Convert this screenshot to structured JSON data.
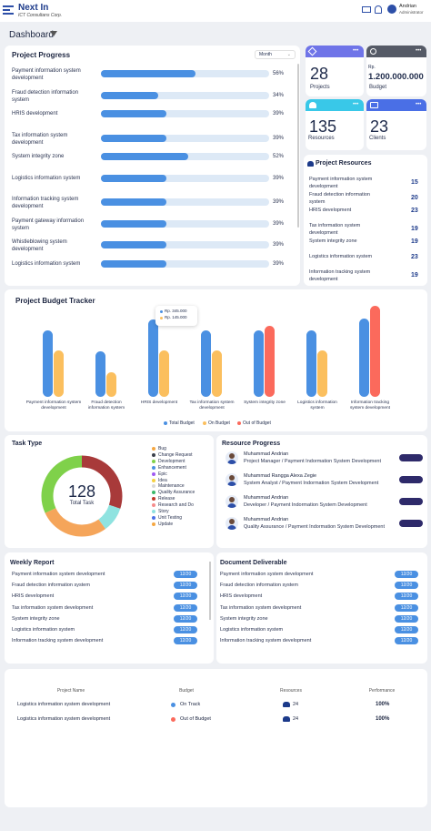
{
  "header": {
    "app_name": "Next In",
    "company": "ICT Consultans Corp.",
    "user_name": "Andrian",
    "user_role": "Administrator"
  },
  "dashboard": {
    "title": "Dashboard"
  },
  "project_progress": {
    "title": "Project Progress",
    "period": "Month",
    "items": [
      {
        "name_l1": "Payment information system",
        "name_l2": "development",
        "pct": 56
      },
      {
        "name_l1": "Fraud detection information",
        "name_l2": "system",
        "pct": 34
      },
      {
        "name_l1": "HRIS development",
        "name_l2": "",
        "pct": 39
      },
      {
        "name_l1": "Tax information system",
        "name_l2": "development",
        "pct": 39
      },
      {
        "name_l1": "System integrity zone",
        "name_l2": "",
        "pct": 52
      },
      {
        "name_l1": "Logistics information system",
        "name_l2": "",
        "pct": 39
      },
      {
        "name_l1": "Information tracking system",
        "name_l2": "development",
        "pct": 39
      },
      {
        "name_l1": "Payment gateway information",
        "name_l2": "system",
        "pct": 39
      },
      {
        "name_l1": "Whistleblowing system",
        "name_l2": "development",
        "pct": 39
      },
      {
        "name_l1": "Logistics information system",
        "name_l2": "",
        "pct": 39
      }
    ]
  },
  "stats": {
    "projects": {
      "value": "28",
      "label": "Projects",
      "color": "#6f74e8"
    },
    "budget": {
      "prefix": "Rp.",
      "value": "1.200.000.000",
      "label": "Budget",
      "color": "#555a66"
    },
    "resources": {
      "value": "135",
      "label": "Resources",
      "color": "#39c8e8"
    },
    "clients": {
      "value": "23",
      "label": "Clients",
      "color": "#4a6fe6"
    },
    "menu": "•••"
  },
  "project_resources": {
    "title": "Project Resources",
    "items": [
      {
        "l1": "Payment information system",
        "l2": "development",
        "count": "15"
      },
      {
        "l1": "Fraud detection information",
        "l2": "system",
        "count": "20"
      },
      {
        "l1": "HRIS development",
        "l2": "",
        "count": "23"
      },
      {
        "l1": "Tax information system",
        "l2": "development",
        "count": "19"
      },
      {
        "l1": "System integrity zone",
        "l2": "",
        "count": "19"
      },
      {
        "l1": "Logistics information system",
        "l2": "",
        "count": "23"
      },
      {
        "l1": "Information tracking system",
        "l2": "development",
        "count": "19"
      }
    ]
  },
  "budget_tracker": {
    "title": "Project Budget Tracker",
    "tooltip": [
      "Rp. 345.000",
      "Rp. 145.000"
    ],
    "legend": [
      "Total Budget",
      "On Budget",
      "Out of Budget"
    ]
  },
  "chart_data": {
    "type": "bar",
    "title": "Project Budget Tracker",
    "categories": [
      "Payment information system  development",
      "Fraud detection information system",
      "HRIS development",
      "Tax information system development",
      "System integrity zone",
      "Logistics information system",
      "Information tracking system development"
    ],
    "series": [
      {
        "name": "Total Budget",
        "color": "#4a90e2",
        "values": [
          73,
          50,
          85,
          73,
          73,
          73,
          86
        ]
      },
      {
        "name": "On Budget",
        "color": "#fbbf5e",
        "values": [
          51,
          27,
          51,
          51,
          0,
          51,
          0
        ]
      },
      {
        "name": "Out of Budget",
        "color": "#fb6a5c",
        "values": [
          0,
          0,
          0,
          0,
          78,
          0,
          100
        ]
      }
    ],
    "ylim": [
      0,
      100
    ]
  },
  "task_type": {
    "title": "Task Type",
    "total": "128",
    "total_label": "Total Task",
    "legend": [
      {
        "label": "Bug",
        "color": "#f5a742"
      },
      {
        "label": "Change Request",
        "color": "#3a3f4b"
      },
      {
        "label": "Development",
        "color": "#7fd14a"
      },
      {
        "label": "Enhancement",
        "color": "#4a90e2"
      },
      {
        "label": "Epic",
        "color": "#a05af2"
      },
      {
        "label": "Idea",
        "color": "#f5d142"
      },
      {
        "label": "Maintenance",
        "color": "#d9d9d9"
      },
      {
        "label": "Quality Assurance",
        "color": "#3ab86a"
      },
      {
        "label": "Release",
        "color": "#c0392b"
      },
      {
        "label": "Research and Do",
        "color": "#f58c8c"
      },
      {
        "label": "Story",
        "color": "#8fe0e0"
      },
      {
        "label": "Unit Testing",
        "color": "#4a6fe6"
      },
      {
        "label": "Update",
        "color": "#f5a742"
      }
    ],
    "donut": [
      {
        "color": "#a83a3a",
        "pct": 30
      },
      {
        "color": "#8fe3e0",
        "pct": 10
      },
      {
        "color": "#f5a55a",
        "pct": 28
      },
      {
        "color": "#7fd14a",
        "pct": 32
      }
    ]
  },
  "resource_progress": {
    "title": "Resource Progress",
    "items": [
      {
        "name": "Muhammad Andrian",
        "role": "Project Manager / Payment Indormation System Development"
      },
      {
        "name": "Muhammad Rangga Alexa Zegie",
        "role": "System Analyst / Payment Indormation System Development"
      },
      {
        "name": "Muhammad Andrian",
        "role": "Developer / Payment Indormation System Development"
      },
      {
        "name": "Muhammad Andrian",
        "role": "Quality Assurance / Payment Indormation System Development"
      }
    ]
  },
  "weekly_report": {
    "title": "Weekly Report",
    "items": [
      {
        "name": "Payment information system development",
        "date": "12/20"
      },
      {
        "name": "Fraud detection information system",
        "date": "12/20"
      },
      {
        "name": "HRIS development",
        "date": "12/20"
      },
      {
        "name": "Tax information system development",
        "date": "12/20"
      },
      {
        "name": "System integrity zone",
        "date": "12/20"
      },
      {
        "name": "Logistics information system",
        "date": "12/20"
      },
      {
        "name": "Information tracking system development",
        "date": "12/20"
      }
    ]
  },
  "document_deliverable": {
    "title": "Document Deliverable",
    "items": [
      {
        "name": "Payment information system development",
        "date": "12/20"
      },
      {
        "name": "Fraud detection information system",
        "date": "12/20"
      },
      {
        "name": "HRIS development",
        "date": "12/20"
      },
      {
        "name": "Tax information system development",
        "date": "12/20"
      },
      {
        "name": "System integrity zone",
        "date": "12/20"
      },
      {
        "name": "Logistics information system",
        "date": "12/20"
      },
      {
        "name": "Information tracking system development",
        "date": "12/20"
      }
    ]
  },
  "project_table": {
    "columns": [
      "Project Name",
      "Budget",
      "Resources",
      "Performance"
    ],
    "rows": [
      {
        "name": "Logistics information system development",
        "budget": "On Track",
        "budget_color": "#4a90e2",
        "resources": "24",
        "performance": "100%"
      },
      {
        "name": "Logistics information system development",
        "budget": "Out of Budget",
        "budget_color": "#fb6a5c",
        "resources": "24",
        "performance": "100%"
      }
    ]
  }
}
